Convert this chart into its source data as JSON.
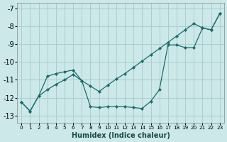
{
  "xlabel": "Humidex (Indice chaleur)",
  "background_color": "#cce8e8",
  "grid_color": "#aacece",
  "line_color": "#1a6b6b",
  "xlim": [
    -0.5,
    23.5
  ],
  "ylim": [
    -13.4,
    -6.7
  ],
  "yticks": [
    -13,
    -12,
    -11,
    -10,
    -9,
    -8,
    -7
  ],
  "xticks": [
    0,
    1,
    2,
    3,
    4,
    5,
    6,
    7,
    8,
    9,
    10,
    11,
    12,
    13,
    14,
    15,
    16,
    17,
    18,
    19,
    20,
    21,
    22,
    23
  ],
  "line1_x": [
    0,
    1,
    2,
    3,
    4,
    5,
    6,
    7,
    8,
    9,
    10,
    11,
    12,
    13,
    14,
    15,
    16,
    17,
    18,
    19,
    20,
    21,
    22,
    23
  ],
  "line1_y": [
    -12.25,
    -12.75,
    -11.9,
    -11.55,
    -11.25,
    -11.0,
    -10.7,
    -11.05,
    -11.35,
    -11.65,
    -11.3,
    -10.95,
    -10.65,
    -10.3,
    -9.95,
    -9.6,
    -9.25,
    -8.9,
    -8.55,
    -8.2,
    -7.85,
    -8.1,
    -8.2,
    -7.3
  ],
  "line2_x": [
    0,
    1,
    2,
    3,
    4,
    5,
    6,
    7,
    8,
    9,
    10,
    11,
    12,
    13,
    14,
    15,
    16,
    17,
    18,
    19,
    20,
    21,
    22,
    23
  ],
  "line2_y": [
    -12.25,
    -12.75,
    -11.9,
    -10.8,
    -10.65,
    -10.55,
    -10.45,
    -11.05,
    -12.5,
    -12.55,
    -12.5,
    -12.5,
    -12.5,
    -12.55,
    -12.6,
    -12.2,
    -11.55,
    -9.05,
    -9.05,
    -9.2,
    -9.2,
    -8.1,
    -8.2,
    -7.3
  ]
}
